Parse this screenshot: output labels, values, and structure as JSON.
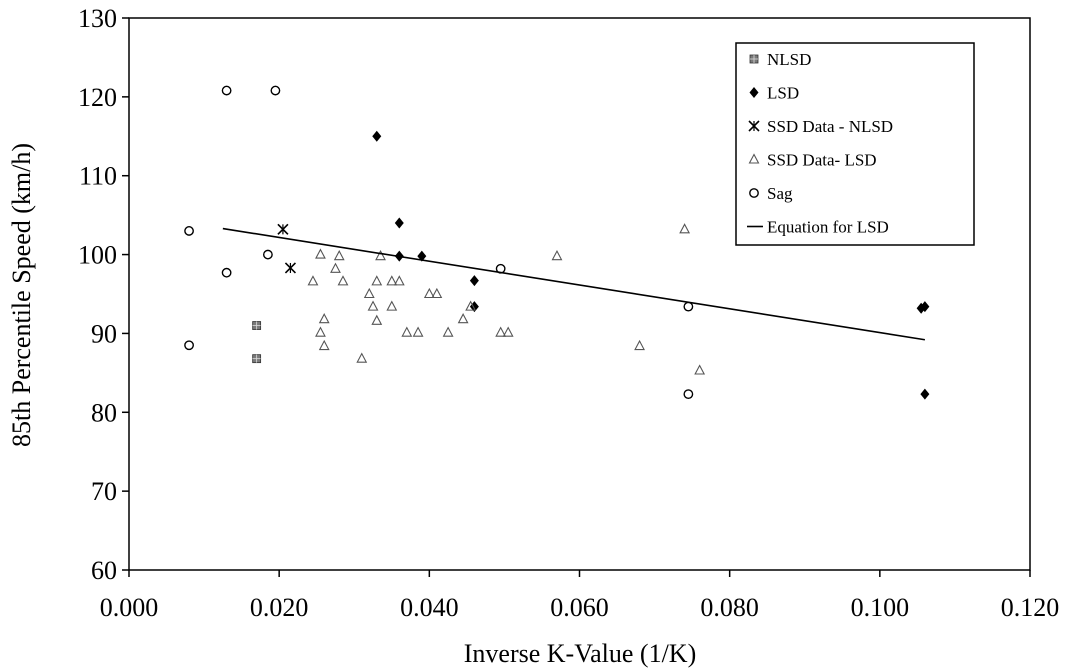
{
  "chart_data": {
    "type": "scatter",
    "xlabel": "Inverse K-Value (1/K)",
    "ylabel": "85th Percentile Speed (km/h)",
    "xlim": [
      0,
      0.12
    ],
    "ylim": [
      60,
      130
    ],
    "x_ticks": [
      "0.000",
      "0.020",
      "0.040",
      "0.060",
      "0.080",
      "0.100",
      "0.120"
    ],
    "y_ticks": [
      "60",
      "70",
      "80",
      "90",
      "100",
      "110",
      "120",
      "130"
    ],
    "grid": false,
    "legend_position": "top-right",
    "series": [
      {
        "name": "NLSD",
        "marker": "square",
        "color": "#7a7a7a",
        "points": [
          [
            0.017,
            91
          ],
          [
            0.017,
            86.8
          ]
        ]
      },
      {
        "name": "LSD",
        "marker": "diamond",
        "color": "#000000",
        "points": [
          [
            0.033,
            115
          ],
          [
            0.036,
            104
          ],
          [
            0.036,
            99.8
          ],
          [
            0.039,
            99.8
          ],
          [
            0.046,
            96.7
          ],
          [
            0.046,
            93.4
          ],
          [
            0.1055,
            93.2
          ],
          [
            0.106,
            93.4
          ],
          [
            0.106,
            82.3
          ]
        ]
      },
      {
        "name": "SSD Data - NLSD",
        "marker": "star",
        "color": "#000000",
        "points": [
          [
            0.0205,
            103.2
          ],
          [
            0.0215,
            98.3
          ]
        ]
      },
      {
        "name": "SSD Data- LSD",
        "marker": "triangle",
        "color": "#555555",
        "points": [
          [
            0.0245,
            96.6
          ],
          [
            0.0255,
            100
          ],
          [
            0.0255,
            90.1
          ],
          [
            0.026,
            91.8
          ],
          [
            0.026,
            88.4
          ],
          [
            0.0275,
            98.2
          ],
          [
            0.028,
            99.8
          ],
          [
            0.0285,
            96.6
          ],
          [
            0.031,
            86.8
          ],
          [
            0.032,
            95
          ],
          [
            0.0325,
            93.4
          ],
          [
            0.033,
            91.6
          ],
          [
            0.033,
            96.6
          ],
          [
            0.0335,
            99.8
          ],
          [
            0.035,
            93.4
          ],
          [
            0.035,
            96.6
          ],
          [
            0.036,
            96.6
          ],
          [
            0.037,
            90.1
          ],
          [
            0.0385,
            90.1
          ],
          [
            0.04,
            95
          ],
          [
            0.041,
            95
          ],
          [
            0.0425,
            90.1
          ],
          [
            0.0445,
            91.8
          ],
          [
            0.0455,
            93.4
          ],
          [
            0.0495,
            90.1
          ],
          [
            0.0505,
            90.1
          ],
          [
            0.057,
            99.8
          ],
          [
            0.068,
            88.4
          ],
          [
            0.074,
            103.2
          ],
          [
            0.076,
            85.3
          ]
        ]
      },
      {
        "name": "Sag",
        "marker": "circle",
        "color": "#000000",
        "points": [
          [
            0.008,
            103
          ],
          [
            0.008,
            88.5
          ],
          [
            0.013,
            120.8
          ],
          [
            0.013,
            97.7
          ],
          [
            0.0185,
            100
          ],
          [
            0.0195,
            120.8
          ],
          [
            0.0495,
            98.2
          ],
          [
            0.0745,
            93.4
          ],
          [
            0.0745,
            82.3
          ]
        ]
      },
      {
        "name": "Equation for LSD",
        "marker": "line",
        "color": "#000000",
        "points": [
          [
            0.0125,
            103.3
          ],
          [
            0.106,
            89.2
          ]
        ]
      }
    ]
  }
}
